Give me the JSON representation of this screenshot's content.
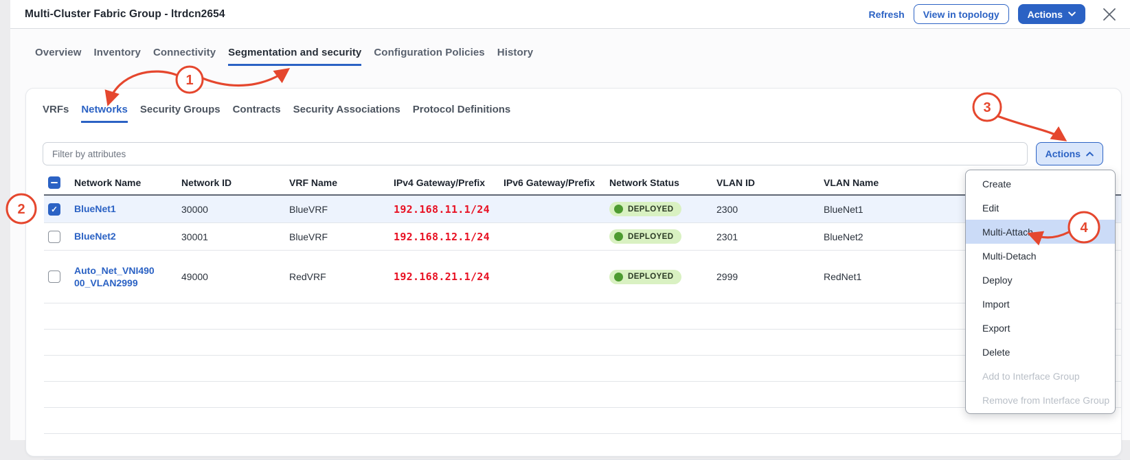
{
  "colors": {
    "accent": "#2b62c4",
    "accent-light": "#d9e6fb",
    "row-selected": "#edf3fd",
    "menu-highlight": "#cbdbf7",
    "annotation": "#e5472e",
    "ip-red": "#e81123",
    "badge-bg": "#d9f1c2",
    "badge-dot": "#4d9b30"
  },
  "header": {
    "title": "Multi-Cluster Fabric Group - ltrdcn2654",
    "refresh": "Refresh",
    "view_in_topology": "View in topology",
    "actions": "Actions"
  },
  "tabs": [
    {
      "label": "Overview"
    },
    {
      "label": "Inventory"
    },
    {
      "label": "Connectivity"
    },
    {
      "label": "Segmentation and security",
      "active": true
    },
    {
      "label": "Configuration Policies"
    },
    {
      "label": "History"
    }
  ],
  "subtabs": [
    {
      "label": "VRFs"
    },
    {
      "label": "Networks",
      "active": true
    },
    {
      "label": "Security Groups"
    },
    {
      "label": "Contracts"
    },
    {
      "label": "Security Associations"
    },
    {
      "label": "Protocol Definitions"
    }
  ],
  "toolbar": {
    "filter_placeholder": "Filter by attributes",
    "actions": "Actions"
  },
  "table": {
    "select_all_state": "indeterminate",
    "columns": [
      "Network Name",
      "Network ID",
      "VRF Name",
      "IPv4 Gateway/Prefix",
      "IPv6 Gateway/Prefix",
      "Network Status",
      "VLAN ID",
      "VLAN Name"
    ],
    "rows": [
      {
        "name": "BlueNet1",
        "id": "30000",
        "vrf": "BlueVRF",
        "ipv4": "192.168.11.1/24",
        "ipv6": "",
        "status": "DEPLOYED",
        "vlan_id": "2300",
        "vlan_name": "BlueNet1",
        "checked": true,
        "selected": true
      },
      {
        "name": "BlueNet2",
        "id": "30001",
        "vrf": "BlueVRF",
        "ipv4": "192.168.12.1/24",
        "ipv6": "",
        "status": "DEPLOYED",
        "vlan_id": "2301",
        "vlan_name": "BlueNet2",
        "checked": false,
        "selected": false
      },
      {
        "name": "Auto_Net_VNI49000_VLAN2999",
        "id": "49000",
        "vrf": "RedVRF",
        "ipv4": "192.168.21.1/24",
        "ipv6": "",
        "status": "DEPLOYED",
        "vlan_id": "2999",
        "vlan_name": "RedNet1",
        "checked": false,
        "selected": false
      }
    ]
  },
  "menu": [
    {
      "label": "Create"
    },
    {
      "label": "Edit"
    },
    {
      "label": "Multi-Attach",
      "highlighted": true
    },
    {
      "label": "Multi-Detach"
    },
    {
      "label": "Deploy"
    },
    {
      "label": "Import"
    },
    {
      "label": "Export"
    },
    {
      "label": "Delete"
    },
    {
      "label": "Add to Interface Group",
      "disabled": true
    },
    {
      "label": "Remove from Interface Group",
      "disabled": true
    }
  ],
  "annotations": {
    "step1": "1",
    "step2": "2",
    "step3": "3",
    "step4": "4"
  }
}
